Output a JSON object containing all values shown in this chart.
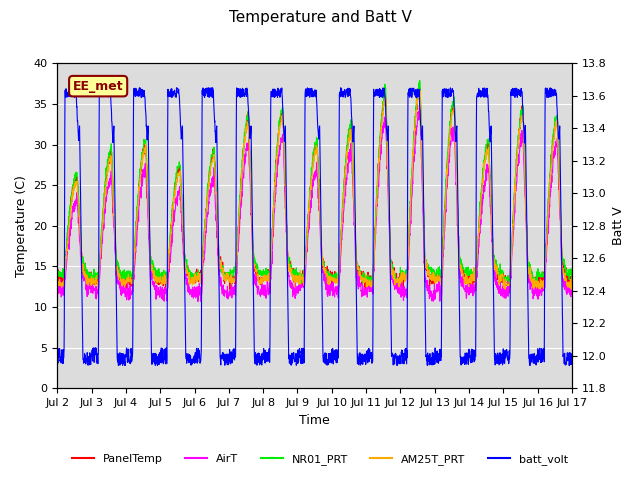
{
  "title": "Temperature and Batt V",
  "xlabel": "Time",
  "ylabel_left": "Temperature (C)",
  "ylabel_right": "Batt V",
  "ylim_left": [
    0,
    40
  ],
  "ylim_right": [
    11.8,
    13.8
  ],
  "annotation": "EE_met",
  "background_color": "#dcdcdc",
  "line_colors": {
    "PanelTemp": "#ff0000",
    "AirT": "#ff00ff",
    "NR01_PRT": "#00ee00",
    "AM25T_PRT": "#ffaa00",
    "batt_volt": "#0000ff"
  },
  "xtick_labels": [
    "Jul 2",
    "Jul 3",
    "Jul 4",
    "Jul 5",
    "Jul 6",
    "Jul 7",
    "Jul 8",
    "Jul 9",
    "Jul 10",
    "Jul 11",
    "Jul 12",
    "Jul 13",
    "Jul 14",
    "Jul 15",
    "Jul 16",
    "Jul 17"
  ],
  "n_days": 15,
  "pts_per_day": 144,
  "temp_min_night": 13.0,
  "temp_max_peaks": [
    26,
    29,
    30,
    27,
    29,
    33,
    34,
    30,
    32,
    36,
    37,
    35,
    30,
    34,
    33
  ],
  "batt_night_low": 12.0,
  "batt_day_high": 13.65,
  "grid_color": "#c8c8c8",
  "figsize": [
    6.4,
    4.8
  ],
  "dpi": 100
}
